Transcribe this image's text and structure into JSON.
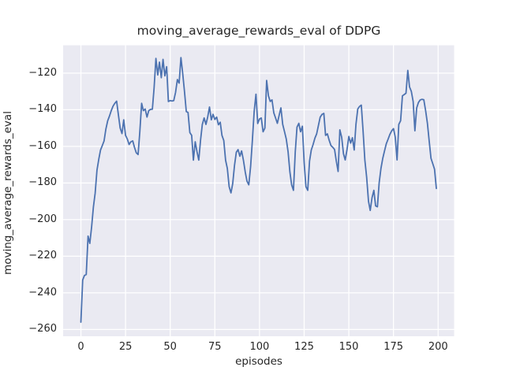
{
  "chart_data": {
    "type": "line",
    "title": "moving_average_rewards_eval of DDPG",
    "xlabel": "episodes",
    "ylabel": "moving_average_rewards_eval",
    "x_ticks": [
      0,
      25,
      50,
      75,
      100,
      125,
      150,
      175,
      200
    ],
    "y_ticks": [
      -120,
      -140,
      -160,
      -180,
      -200,
      -220,
      -240,
      -260
    ],
    "xlim": [
      -9.95,
      208.95
    ],
    "ylim": [
      -263.7,
      -104.8
    ],
    "grid": true,
    "legend": "none",
    "series": [
      {
        "name": "moving_average_rewards_eval",
        "x_start": 0,
        "x_step": 1,
        "values": [
          -256,
          -233,
          -230.5,
          -230,
          -209,
          -213,
          -204,
          -193,
          -185.5,
          -173,
          -167,
          -162,
          -159.5,
          -157,
          -150.5,
          -146,
          -143.5,
          -140.5,
          -138,
          -136.5,
          -135.3,
          -143,
          -150,
          -153,
          -145.5,
          -154,
          -156,
          -159,
          -157.5,
          -157,
          -160.5,
          -163.5,
          -164.5,
          -152,
          -136.5,
          -140.5,
          -139.6,
          -144,
          -140.5,
          -139.8,
          -139.7,
          -128,
          -112,
          -121,
          -114,
          -122.5,
          -112.5,
          -121.5,
          -116.5,
          -135.5,
          -135,
          -135.2,
          -135,
          -130.5,
          -123.5,
          -125.5,
          -111.5,
          -120,
          -130,
          -141,
          -141.5,
          -152.5,
          -154,
          -167.5,
          -157.5,
          -163,
          -167.5,
          -156.5,
          -148,
          -144.5,
          -148,
          -144,
          -138.5,
          -145.5,
          -142.5,
          -145.3,
          -144,
          -148.2,
          -146.8,
          -154,
          -156.8,
          -167.6,
          -172,
          -182,
          -185.4,
          -180.4,
          -170.4,
          -163.2,
          -161.8,
          -165.4,
          -162.5,
          -167.6,
          -174,
          -179,
          -181,
          -171,
          -157,
          -141,
          -131.5,
          -147.5,
          -145,
          -144.5,
          -152,
          -150,
          -124,
          -132.4,
          -135.5,
          -134.6,
          -141.7,
          -144.6,
          -147.4,
          -143,
          -139,
          -148,
          -152,
          -156,
          -163,
          -174,
          -181,
          -184,
          -163,
          -149.5,
          -147.4,
          -152,
          -149,
          -169,
          -182,
          -184,
          -168,
          -162,
          -159,
          -155.5,
          -153.2,
          -148.5,
          -144,
          -142.5,
          -142,
          -154,
          -153.2,
          -156.7,
          -159.5,
          -160.5,
          -161.7,
          -168,
          -173.7,
          -151,
          -155,
          -164,
          -167.4,
          -161.7,
          -154.6,
          -158.2,
          -155.3,
          -162,
          -148,
          -139.6,
          -138.2,
          -137.5,
          -152,
          -167.5,
          -177,
          -190,
          -195,
          -188,
          -184,
          -192.5,
          -193,
          -180,
          -172,
          -166.5,
          -162.5,
          -158.5,
          -156,
          -153.5,
          -151.5,
          -150.3,
          -155,
          -167.4,
          -148,
          -146,
          -132.4,
          -131.7,
          -131,
          -118.5,
          -127.5,
          -130,
          -135.5,
          -151.5,
          -139,
          -136,
          -134.6,
          -134.3,
          -134.5,
          -140.5,
          -147.5,
          -157,
          -166.5,
          -169.5,
          -172.5,
          -183
        ]
      }
    ],
    "colors": {
      "line": "#4c72b0",
      "plot_background": "#eaeaf2",
      "figure_background": "#ffffff",
      "grid": "#ffffff",
      "text": "#262626"
    }
  }
}
